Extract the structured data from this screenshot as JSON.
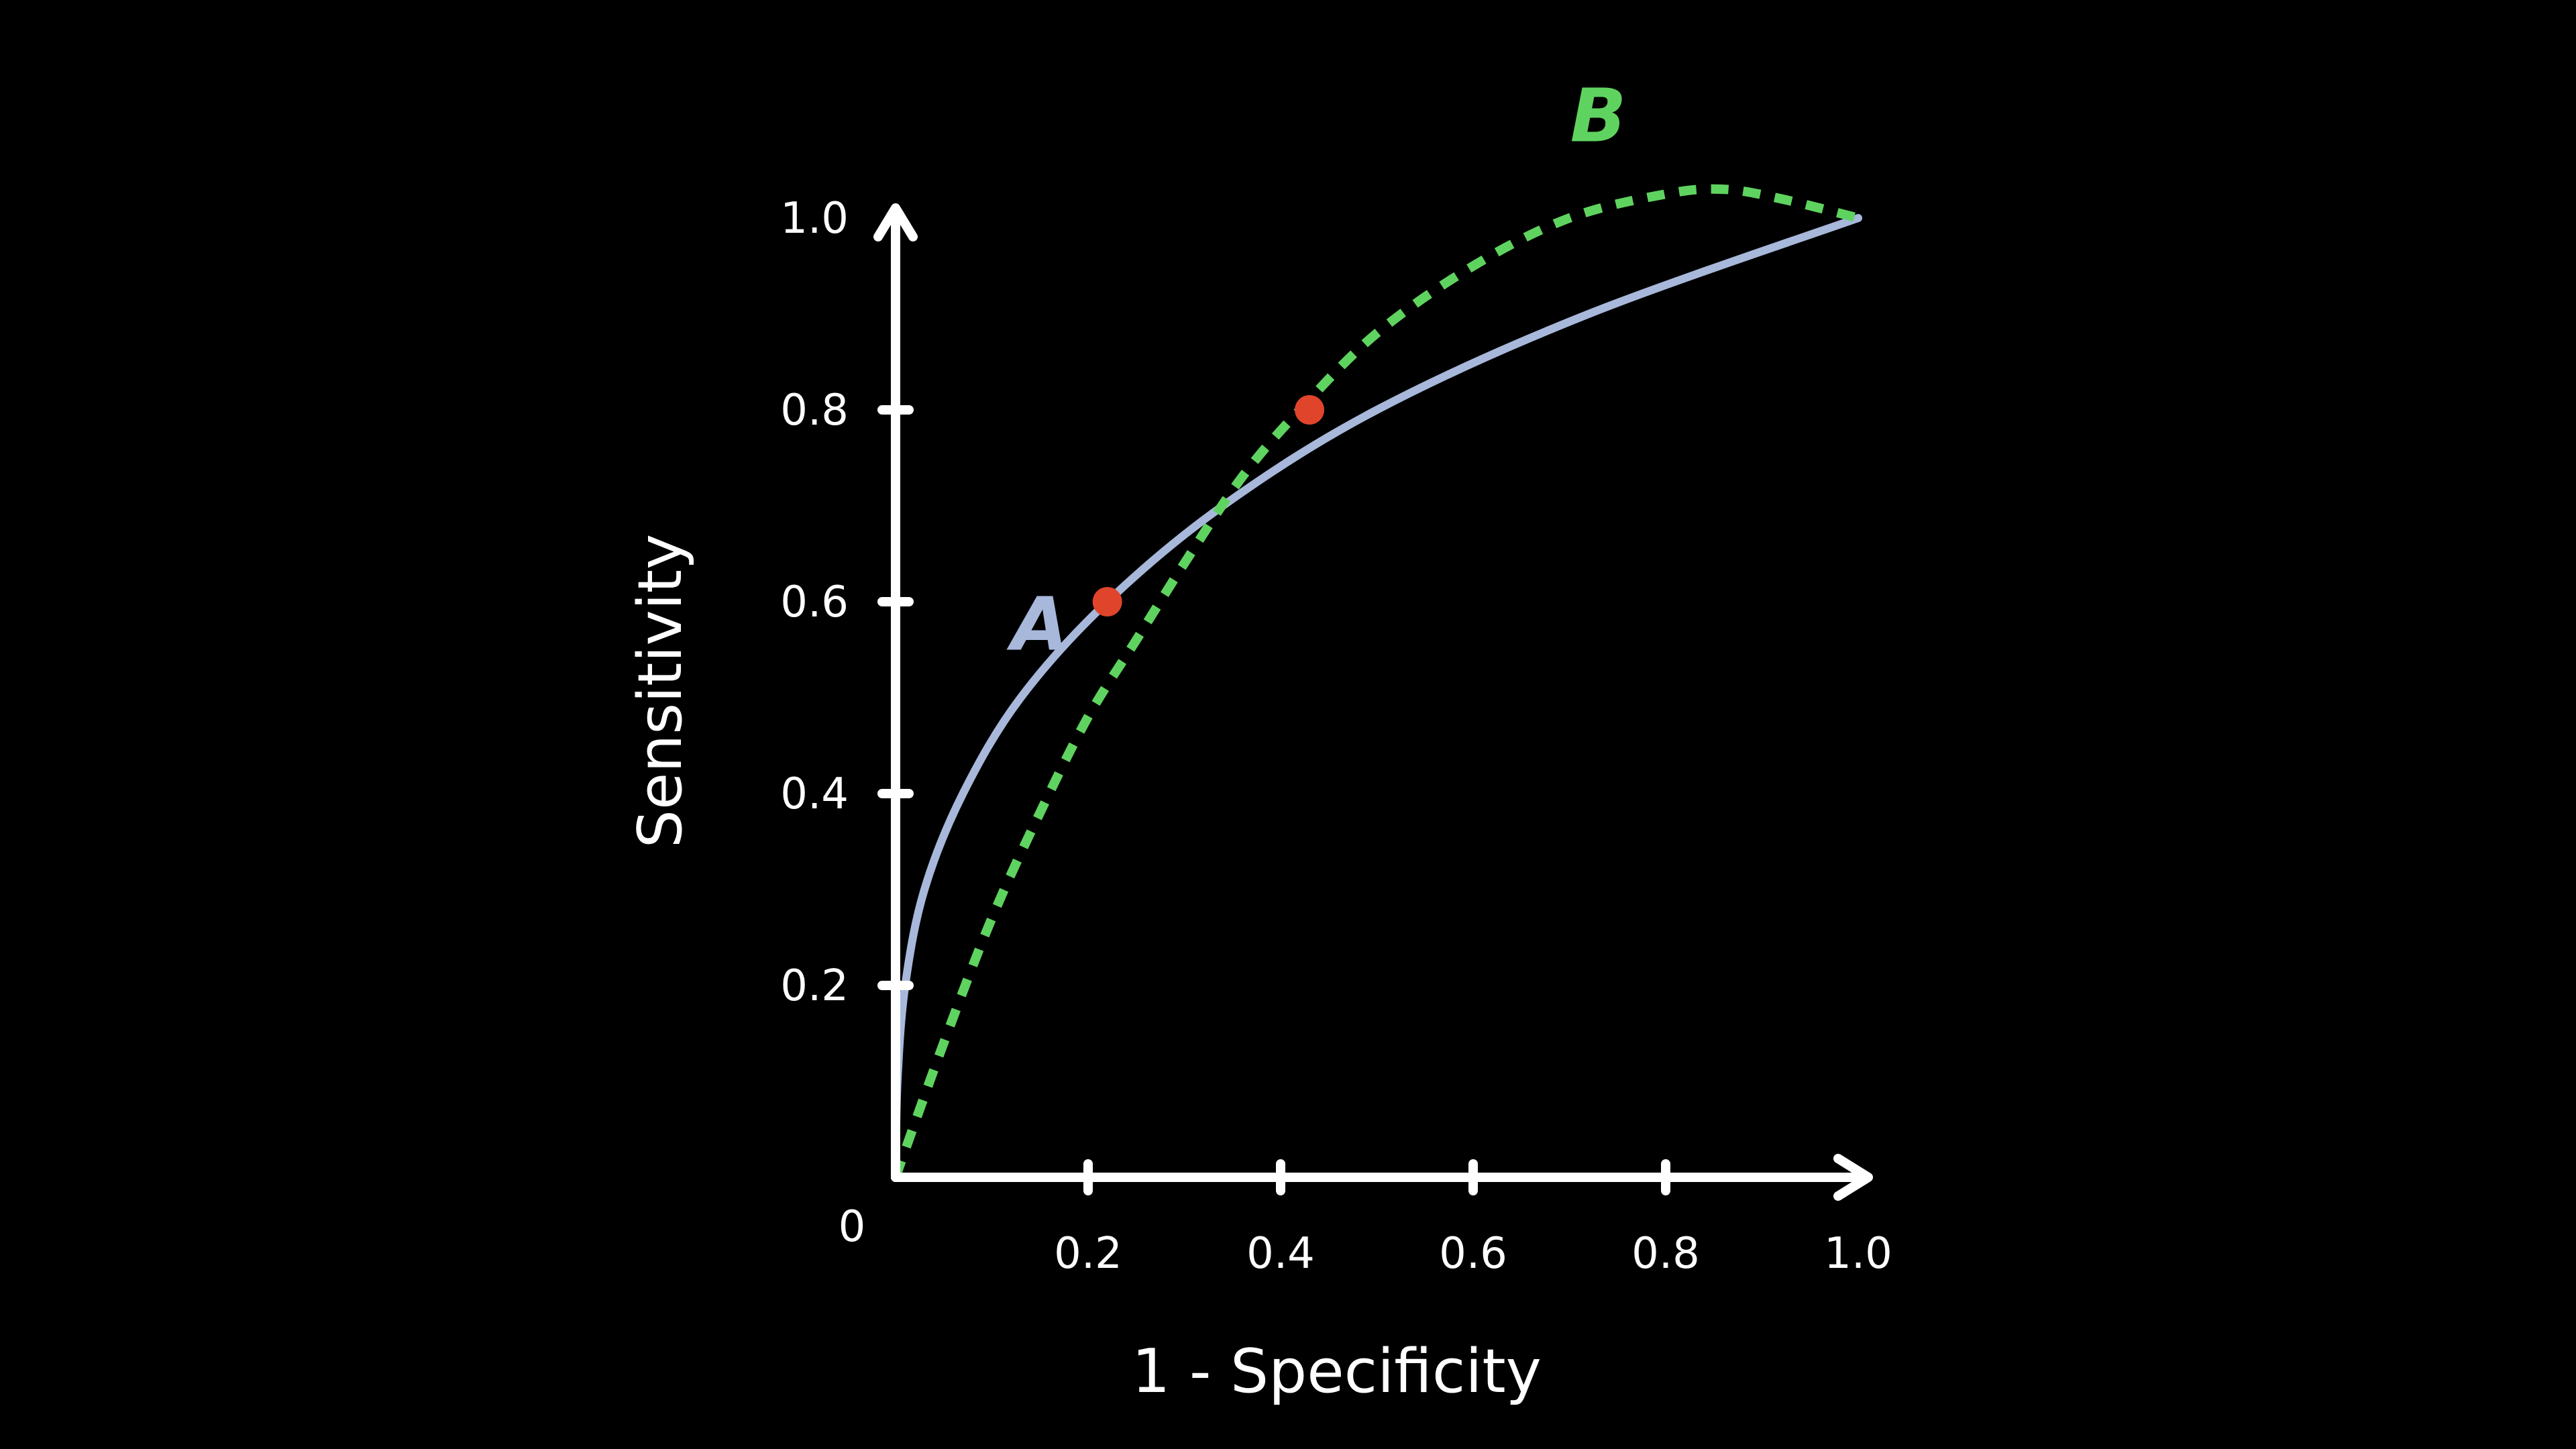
{
  "chart_data": {
    "type": "line",
    "title": "",
    "xlabel": "1 - Specificity",
    "ylabel": "Sensitivity",
    "xlim": [
      0,
      1.0
    ],
    "ylim": [
      0,
      1.0
    ],
    "origin_label": "0",
    "x_ticks": [
      {
        "value": 0.2,
        "label": "0.2"
      },
      {
        "value": 0.4,
        "label": "0.4"
      },
      {
        "value": 0.6,
        "label": "0.6"
      },
      {
        "value": 0.8,
        "label": "0.8"
      },
      {
        "value": 1.0,
        "label": "1.0"
      }
    ],
    "y_ticks": [
      {
        "value": 0.2,
        "label": "0.2"
      },
      {
        "value": 0.4,
        "label": "0.4"
      },
      {
        "value": 0.6,
        "label": "0.6"
      },
      {
        "value": 0.8,
        "label": "0.8"
      },
      {
        "value": 1.0,
        "label": "1.0"
      }
    ],
    "grid": false,
    "series": [
      {
        "name": "A",
        "style": "solid",
        "color": "#a7b8db",
        "points": [
          [
            0,
            0
          ],
          [
            0.002,
            0.1
          ],
          [
            0.01,
            0.2
          ],
          [
            0.03,
            0.3
          ],
          [
            0.07,
            0.4
          ],
          [
            0.13,
            0.5
          ],
          [
            0.22,
            0.6
          ],
          [
            0.34,
            0.7
          ],
          [
            0.5,
            0.8
          ],
          [
            0.72,
            0.9
          ],
          [
            1.0,
            1.0
          ]
        ]
      },
      {
        "name": "B",
        "style": "dashed",
        "color": "#5fd35f",
        "points": [
          [
            0,
            0
          ],
          [
            0.05,
            0.14
          ],
          [
            0.1,
            0.27
          ],
          [
            0.15,
            0.38
          ],
          [
            0.2,
            0.48
          ],
          [
            0.25,
            0.56
          ],
          [
            0.3,
            0.64
          ],
          [
            0.36,
            0.73
          ],
          [
            0.42,
            0.8
          ],
          [
            0.5,
            0.88
          ],
          [
            0.6,
            0.95
          ],
          [
            0.7,
            1.0
          ],
          [
            0.8,
            1.025
          ],
          [
            0.86,
            1.03
          ],
          [
            0.92,
            1.02
          ],
          [
            1.0,
            1.0
          ]
        ]
      }
    ],
    "highlight_points": [
      {
        "series": "A",
        "x": 0.22,
        "y": 0.6,
        "color": "#e0452b"
      },
      {
        "series": "B",
        "x": 0.43,
        "y": 0.8,
        "color": "#e0452b"
      }
    ],
    "series_labels": [
      {
        "text": "A",
        "series": "A",
        "color": "#a7b8db"
      },
      {
        "text": "B",
        "series": "B",
        "color": "#5fd35f"
      }
    ]
  }
}
